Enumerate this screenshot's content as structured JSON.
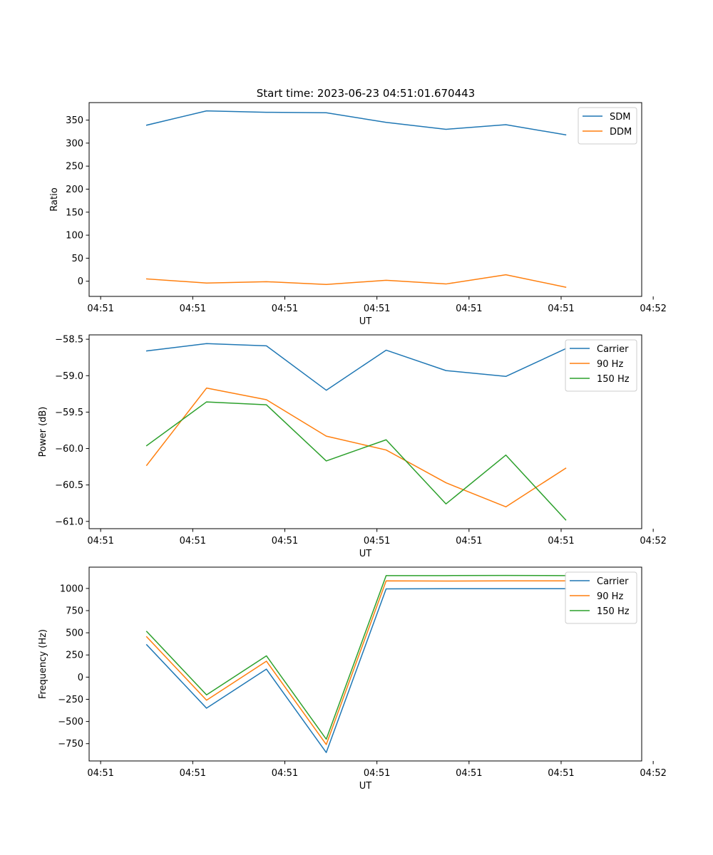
{
  "figure": {
    "title": "Start time: 2023-06-23 04:51:01.670443"
  },
  "colors": {
    "blue": "#1f77b4",
    "orange": "#ff7f0e",
    "green": "#2ca02c"
  },
  "chart_data": [
    {
      "type": "line",
      "title": "Start time: 2023-06-23 04:51:01.670443",
      "xlabel": "UT",
      "ylabel": "Ratio",
      "x_tick_labels": [
        "04:51",
        "04:51",
        "04:51",
        "04:51",
        "04:51",
        "04:51",
        "04:52"
      ],
      "xlim": [
        -0.25,
        11.75
      ],
      "ylim": [
        -33,
        388
      ],
      "y_ticks": [
        0,
        50,
        100,
        150,
        200,
        250,
        300,
        350
      ],
      "grid": false,
      "legend_position": "top-right",
      "x": [
        1,
        2.3,
        3.6,
        4.9,
        6.2,
        7.5,
        8.8,
        10.1
      ],
      "series": [
        {
          "name": "SDM",
          "color": "#1f77b4",
          "values": [
            339,
            370,
            367,
            366,
            345,
            330,
            340,
            318
          ]
        },
        {
          "name": "DDM",
          "color": "#ff7f0e",
          "values": [
            5,
            -4,
            -1,
            -7,
            2,
            -6,
            14,
            -13
          ]
        }
      ]
    },
    {
      "type": "line",
      "xlabel": "UT",
      "ylabel": "Power (dB)",
      "x_tick_labels": [
        "04:51",
        "04:51",
        "04:51",
        "04:51",
        "04:51",
        "04:51",
        "04:52"
      ],
      "xlim": [
        -0.25,
        11.75
      ],
      "ylim": [
        -61.1,
        -58.44
      ],
      "y_ticks": [
        -61.0,
        -60.5,
        -60.0,
        -59.5,
        -59.0,
        -58.5
      ],
      "grid": false,
      "legend_position": "top-right",
      "x": [
        1,
        2.3,
        3.6,
        4.9,
        6.2,
        7.5,
        8.8,
        10.1
      ],
      "series": [
        {
          "name": "Carrier",
          "color": "#1f77b4",
          "values": [
            -58.66,
            -58.56,
            -58.59,
            -59.2,
            -58.65,
            -58.93,
            -59.01,
            -58.63
          ]
        },
        {
          "name": "90 Hz",
          "color": "#ff7f0e",
          "values": [
            -60.23,
            -59.17,
            -59.33,
            -59.83,
            -60.02,
            -60.47,
            -60.8,
            -60.27
          ]
        },
        {
          "name": "150 Hz",
          "color": "#2ca02c",
          "values": [
            -59.96,
            -59.36,
            -59.4,
            -60.17,
            -59.88,
            -60.76,
            -60.09,
            -60.98
          ]
        }
      ]
    },
    {
      "type": "line",
      "xlabel": "UT",
      "ylabel": "Frequency (Hz)",
      "x_tick_labels": [
        "04:51",
        "04:51",
        "04:51",
        "04:51",
        "04:51",
        "04:51",
        "04:52"
      ],
      "xlim": [
        -0.25,
        11.75
      ],
      "ylim": [
        -945,
        1240
      ],
      "y_ticks": [
        -750,
        -500,
        -250,
        0,
        250,
        500,
        750,
        1000
      ],
      "grid": false,
      "legend_position": "top-right",
      "x": [
        1,
        2.3,
        3.6,
        4.9,
        6.2,
        7.5,
        8.8,
        10.1
      ],
      "series": [
        {
          "name": "Carrier",
          "color": "#1f77b4",
          "values": [
            365,
            -350,
            90,
            -850,
            995,
            997,
            997,
            997
          ]
        },
        {
          "name": "90 Hz",
          "color": "#ff7f0e",
          "values": [
            455,
            -260,
            180,
            -760,
            1085,
            1083,
            1085,
            1085
          ]
        },
        {
          "name": "150 Hz",
          "color": "#2ca02c",
          "values": [
            515,
            -200,
            240,
            -700,
            1145,
            1145,
            1147,
            1145
          ]
        }
      ]
    }
  ]
}
